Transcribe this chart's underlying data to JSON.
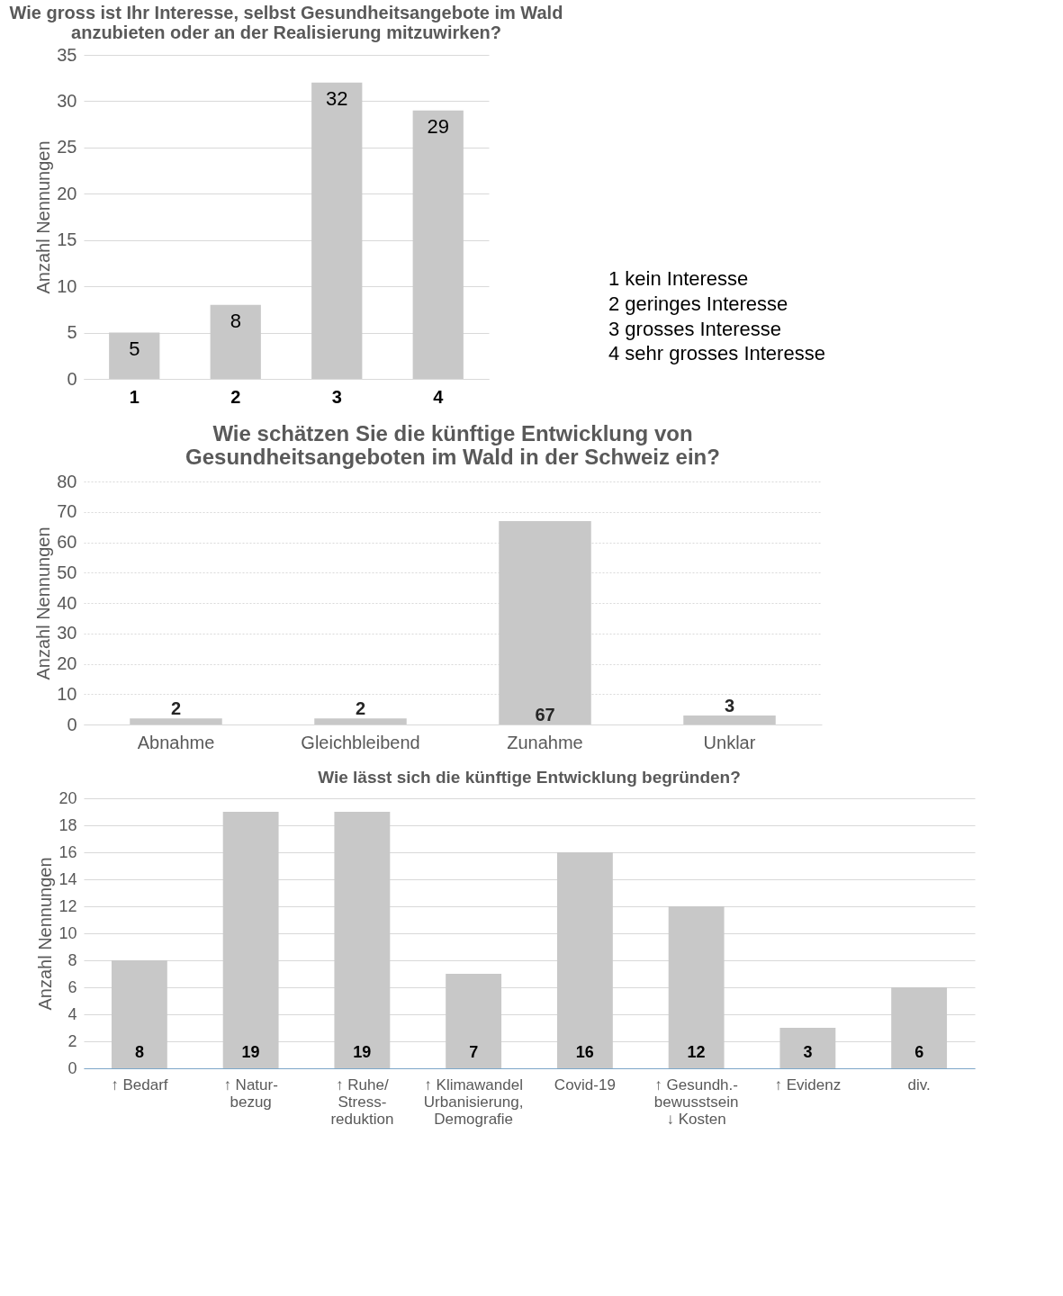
{
  "chart_data": [
    {
      "type": "bar",
      "title": "Wie gross ist Ihr Interesse, selbst Gesundheitsangebote im Wald\nanzubieten oder an der Realisierung mitzuwirken?",
      "ylabel": "Anzahl Nennungen",
      "categories": [
        "1",
        "2",
        "3",
        "4"
      ],
      "values": [
        5,
        8,
        32,
        29
      ],
      "color": "#c8c8c8",
      "ylim": [
        0,
        35
      ],
      "yticks": [
        0,
        5,
        10,
        15,
        20,
        25,
        30,
        35
      ],
      "grid": "y",
      "data_labels": true,
      "annotations": [
        "1 kein Interesse",
        "2 geringes Interesse",
        "3 grosses Interesse",
        "4 sehr grosses Interesse"
      ]
    },
    {
      "type": "bar",
      "title": "Wie schätzen Sie die künftige Entwicklung von\nGesundheitsangeboten im Wald in der Schweiz ein?",
      "ylabel": "Anzahl Nennungen",
      "categories": [
        "Abnahme",
        "Gleichbleibend",
        "Zunahme",
        "Unklar"
      ],
      "values": [
        2,
        2,
        67,
        3
      ],
      "color": "#c8c8c8",
      "ylim": [
        0,
        80
      ],
      "yticks": [
        0,
        10,
        20,
        30,
        40,
        50,
        60,
        70,
        80
      ],
      "grid": "y",
      "data_labels": true
    },
    {
      "type": "bar",
      "title": "Wie lässt sich die künftige Entwicklung begründen?",
      "ylabel": "Anzahl Nennungen",
      "categories": [
        "↑ Bedarf",
        "↑ Natur-\nbezug",
        "↑ Ruhe/\nStress-\nreduktion",
        "↑ Klimawandel\nUrbanisierung,\nDemografie",
        "Covid-19",
        "↑ Gesundh.-\nbewusstsein\n↓ Kosten",
        "↑ Evidenz",
        "div."
      ],
      "values": [
        8,
        19,
        19,
        7,
        16,
        12,
        3,
        6
      ],
      "color": "#c8c8c8",
      "ylim": [
        0,
        20
      ],
      "yticks": [
        0,
        2,
        4,
        6,
        8,
        10,
        12,
        14,
        16,
        18,
        20
      ],
      "grid": "y",
      "data_labels": true
    }
  ]
}
